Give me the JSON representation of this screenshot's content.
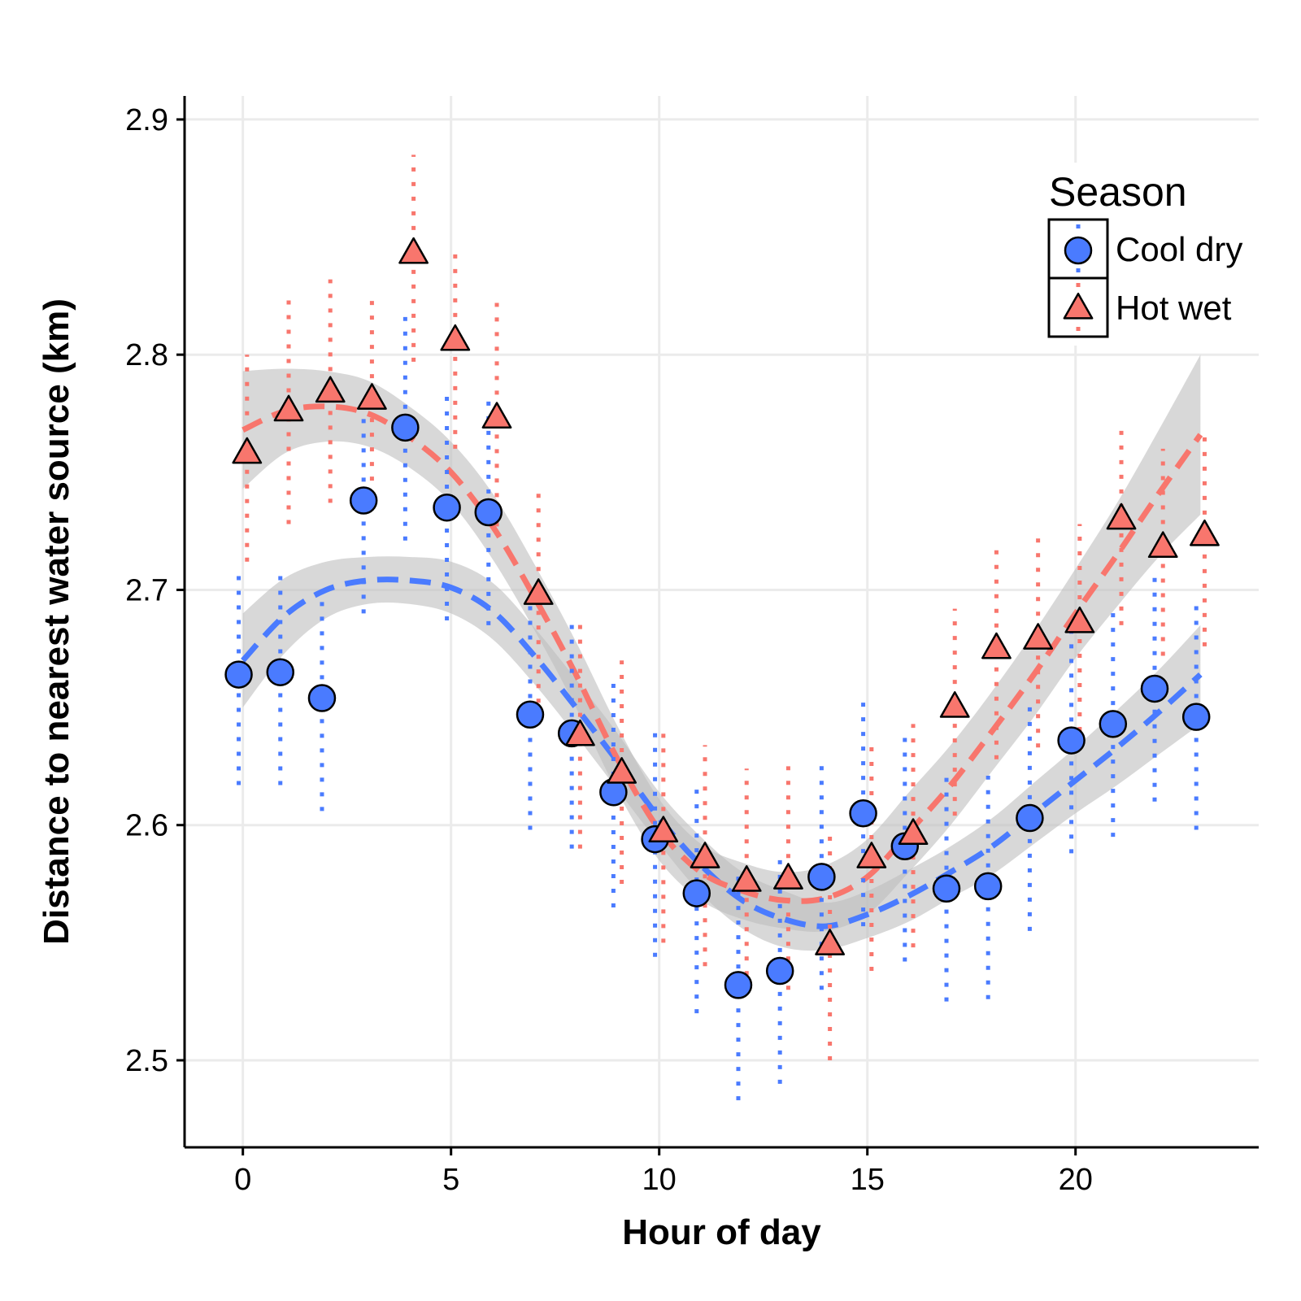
{
  "chart_data": {
    "type": "scatter",
    "xlabel": "Hour of day",
    "ylabel": "Distance to nearest water source (km)",
    "xlim": [
      -1.4,
      24.4
    ],
    "ylim": [
      2.463,
      2.91
    ],
    "xticks": [
      0,
      5,
      10,
      15,
      20
    ],
    "yticks": [
      2.5,
      2.6,
      2.7,
      2.8,
      2.9
    ],
    "xtick_labels": [
      "0",
      "5",
      "10",
      "15",
      "20"
    ],
    "ytick_labels": [
      "2.5",
      "2.6",
      "2.7",
      "2.8",
      "2.9"
    ],
    "grid": true,
    "legend": {
      "title": "Season",
      "position": "top-right"
    },
    "series": [
      {
        "name": "Cool dry",
        "color": "#4a7bff",
        "marker": "circle",
        "x": [
          -0.1,
          0.9,
          1.9,
          2.9,
          3.9,
          4.9,
          5.9,
          6.9,
          7.9,
          8.9,
          9.9,
          10.9,
          11.9,
          12.9,
          13.9,
          14.9,
          15.9,
          16.9,
          17.9,
          18.9,
          19.9,
          20.9,
          21.9,
          22.9
        ],
        "y": [
          2.664,
          2.665,
          2.654,
          2.738,
          2.769,
          2.735,
          2.733,
          2.647,
          2.639,
          2.614,
          2.594,
          2.571,
          2.532,
          2.538,
          2.578,
          2.605,
          2.591,
          2.573,
          2.574,
          2.603,
          2.636,
          2.643,
          2.658,
          2.646
        ],
        "err_low": [
          2.617,
          2.617,
          2.606,
          2.69,
          2.721,
          2.687,
          2.685,
          2.598,
          2.59,
          2.565,
          2.544,
          2.52,
          2.483,
          2.49,
          2.53,
          2.557,
          2.542,
          2.525,
          2.526,
          2.555,
          2.588,
          2.595,
          2.61,
          2.598
        ],
        "err_high": [
          2.706,
          2.706,
          2.7,
          2.783,
          2.816,
          2.783,
          2.781,
          2.697,
          2.686,
          2.662,
          2.642,
          2.618,
          2.58,
          2.586,
          2.626,
          2.654,
          2.638,
          2.621,
          2.621,
          2.651,
          2.684,
          2.691,
          2.706,
          2.694
        ],
        "trend_x": [
          0,
          1,
          2,
          3,
          4,
          5,
          6,
          7,
          8,
          9,
          10,
          11,
          12,
          13,
          14,
          15,
          16,
          17,
          18,
          19,
          20,
          21,
          22,
          23
        ],
        "trend_y": [
          2.67,
          2.689,
          2.7,
          2.704,
          2.704,
          2.701,
          2.691,
          2.672,
          2.65,
          2.627,
          2.603,
          2.583,
          2.568,
          2.56,
          2.557,
          2.562,
          2.57,
          2.58,
          2.591,
          2.605,
          2.619,
          2.633,
          2.648,
          2.664
        ],
        "ci_low": [
          2.65,
          2.673,
          2.688,
          2.694,
          2.694,
          2.69,
          2.679,
          2.66,
          2.638,
          2.615,
          2.592,
          2.571,
          2.556,
          2.548,
          2.547,
          2.552,
          2.559,
          2.569,
          2.579,
          2.592,
          2.605,
          2.617,
          2.63,
          2.643
        ],
        "ci_high": [
          2.69,
          2.705,
          2.712,
          2.714,
          2.714,
          2.712,
          2.703,
          2.684,
          2.662,
          2.639,
          2.614,
          2.595,
          2.58,
          2.572,
          2.567,
          2.572,
          2.581,
          2.591,
          2.603,
          2.618,
          2.633,
          2.649,
          2.666,
          2.685
        ]
      },
      {
        "name": "Hot wet",
        "color": "#f8766d",
        "marker": "triangle",
        "x": [
          0.1,
          1.1,
          2.1,
          3.1,
          4.1,
          5.1,
          6.1,
          7.1,
          8.1,
          9.1,
          10.1,
          11.1,
          12.1,
          13.1,
          14.1,
          15.1,
          16.1,
          17.1,
          18.1,
          19.1,
          20.1,
          21.1,
          22.1,
          23.1
        ],
        "y": [
          2.758,
          2.776,
          2.784,
          2.781,
          2.843,
          2.806,
          2.773,
          2.698,
          2.638,
          2.622,
          2.597,
          2.586,
          2.576,
          2.577,
          2.549,
          2.586,
          2.596,
          2.65,
          2.675,
          2.679,
          2.686,
          2.73,
          2.718,
          2.723
        ],
        "err_low": [
          2.712,
          2.728,
          2.737,
          2.734,
          2.797,
          2.76,
          2.727,
          2.652,
          2.59,
          2.575,
          2.55,
          2.54,
          2.53,
          2.53,
          2.5,
          2.538,
          2.548,
          2.604,
          2.628,
          2.633,
          2.64,
          2.685,
          2.672,
          2.676
        ],
        "err_high": [
          2.8,
          2.824,
          2.832,
          2.823,
          2.885,
          2.846,
          2.822,
          2.745,
          2.686,
          2.67,
          2.643,
          2.634,
          2.624,
          2.625,
          2.596,
          2.634,
          2.643,
          2.692,
          2.718,
          2.722,
          2.728,
          2.772,
          2.76,
          2.765
        ],
        "trend_x": [
          0,
          1,
          2,
          3,
          4,
          5,
          6,
          7,
          8,
          9,
          10,
          11,
          12,
          13,
          14,
          15,
          16,
          17,
          18,
          19,
          20,
          21,
          22,
          23
        ],
        "trend_y": [
          2.768,
          2.776,
          2.778,
          2.775,
          2.765,
          2.75,
          2.727,
          2.697,
          2.664,
          2.628,
          2.598,
          2.58,
          2.572,
          2.568,
          2.569,
          2.578,
          2.597,
          2.617,
          2.64,
          2.664,
          2.69,
          2.715,
          2.741,
          2.766
        ],
        "ci_low": [
          2.743,
          2.758,
          2.763,
          2.761,
          2.752,
          2.737,
          2.713,
          2.683,
          2.65,
          2.614,
          2.585,
          2.568,
          2.56,
          2.556,
          2.555,
          2.562,
          2.58,
          2.6,
          2.623,
          2.646,
          2.671,
          2.693,
          2.714,
          2.732
        ],
        "ci_high": [
          2.793,
          2.794,
          2.793,
          2.789,
          2.778,
          2.763,
          2.741,
          2.711,
          2.678,
          2.642,
          2.611,
          2.592,
          2.584,
          2.58,
          2.583,
          2.594,
          2.614,
          2.634,
          2.657,
          2.682,
          2.709,
          2.737,
          2.768,
          2.8
        ]
      }
    ]
  }
}
